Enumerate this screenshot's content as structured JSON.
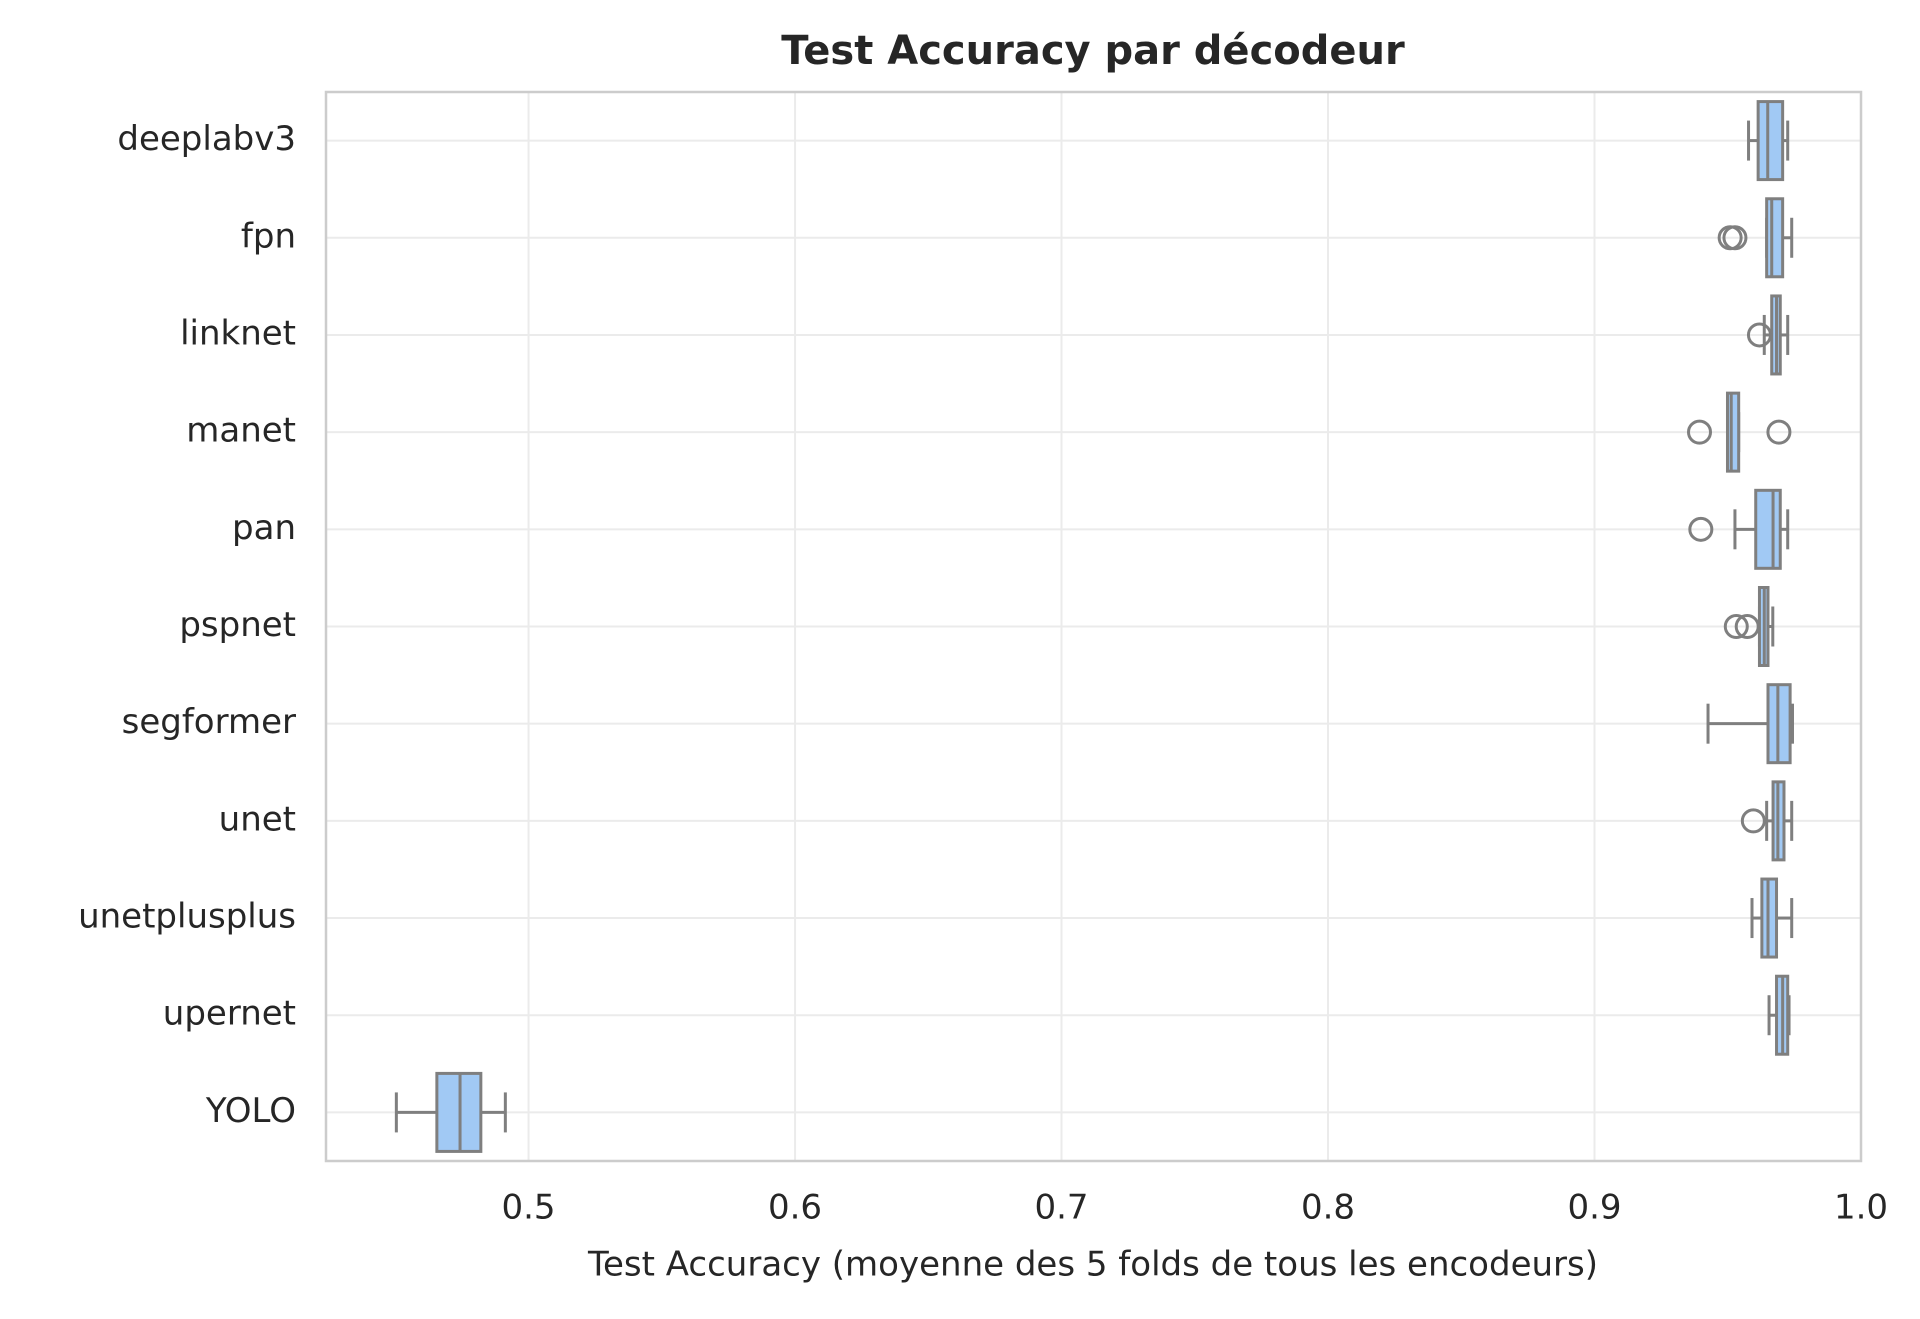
{
  "chart_data": {
    "type": "box",
    "title": "Test Accuracy par décodeur",
    "xlabel": "Test Accuracy (moyenne des 5 folds de tous les encodeurs)",
    "categories": [
      "deeplabv3",
      "fpn",
      "linknet",
      "manet",
      "pan",
      "pspnet",
      "segformer",
      "unet",
      "unetplusplus",
      "upernet",
      "YOLO"
    ],
    "boxes": [
      {
        "whislo": 0.9578,
        "q1": 0.9614,
        "med": 0.965,
        "q3": 0.9706,
        "whishi": 0.9725,
        "fliers": []
      },
      {
        "whislo": 0.9646,
        "q1": 0.9646,
        "med": 0.9665,
        "q3": 0.9706,
        "whishi": 0.974,
        "fliers": [
          0.9509,
          0.9527
        ]
      },
      {
        "whislo": 0.9637,
        "q1": 0.9665,
        "med": 0.9683,
        "q3": 0.9697,
        "whishi": 0.9725,
        "fliers": [
          0.9619
        ]
      },
      {
        "whislo": 0.9499,
        "q1": 0.9499,
        "med": 0.9513,
        "q3": 0.9541,
        "whishi": 0.9541,
        "fliers": [
          0.9394,
          0.9692
        ]
      },
      {
        "whislo": 0.9527,
        "q1": 0.9605,
        "med": 0.967,
        "q3": 0.9697,
        "whishi": 0.9725,
        "fliers": [
          0.9399
        ]
      },
      {
        "whislo": 0.9619,
        "q1": 0.9619,
        "med": 0.9637,
        "q3": 0.9651,
        "whishi": 0.9669,
        "fliers": [
          0.9532,
          0.9573
        ]
      },
      {
        "whislo": 0.9426,
        "q1": 0.9651,
        "med": 0.9688,
        "q3": 0.9734,
        "whishi": 0.9743,
        "fliers": []
      },
      {
        "whislo": 0.9646,
        "q1": 0.967,
        "med": 0.9688,
        "q3": 0.9711,
        "whishi": 0.974,
        "fliers": [
          0.9596
        ]
      },
      {
        "whislo": 0.9591,
        "q1": 0.9628,
        "med": 0.9651,
        "q3": 0.9683,
        "whishi": 0.974,
        "fliers": []
      },
      {
        "whislo": 0.9655,
        "q1": 0.9683,
        "med": 0.9706,
        "q3": 0.9725,
        "whishi": 0.973,
        "fliers": []
      },
      {
        "whislo": 0.4504,
        "q1": 0.4656,
        "med": 0.4743,
        "q3": 0.4821,
        "whishi": 0.4913,
        "fliers": []
      }
    ],
    "color": "#a1c9f4",
    "edge_color": "#7f7f7f",
    "xlim": [
      0.424,
      1.0
    ],
    "xticks": [
      0.5,
      0.6,
      0.7,
      0.8,
      0.9,
      {
        "value": 1,
        "label": "1.0"
      }
    ],
    "grid": true
  }
}
